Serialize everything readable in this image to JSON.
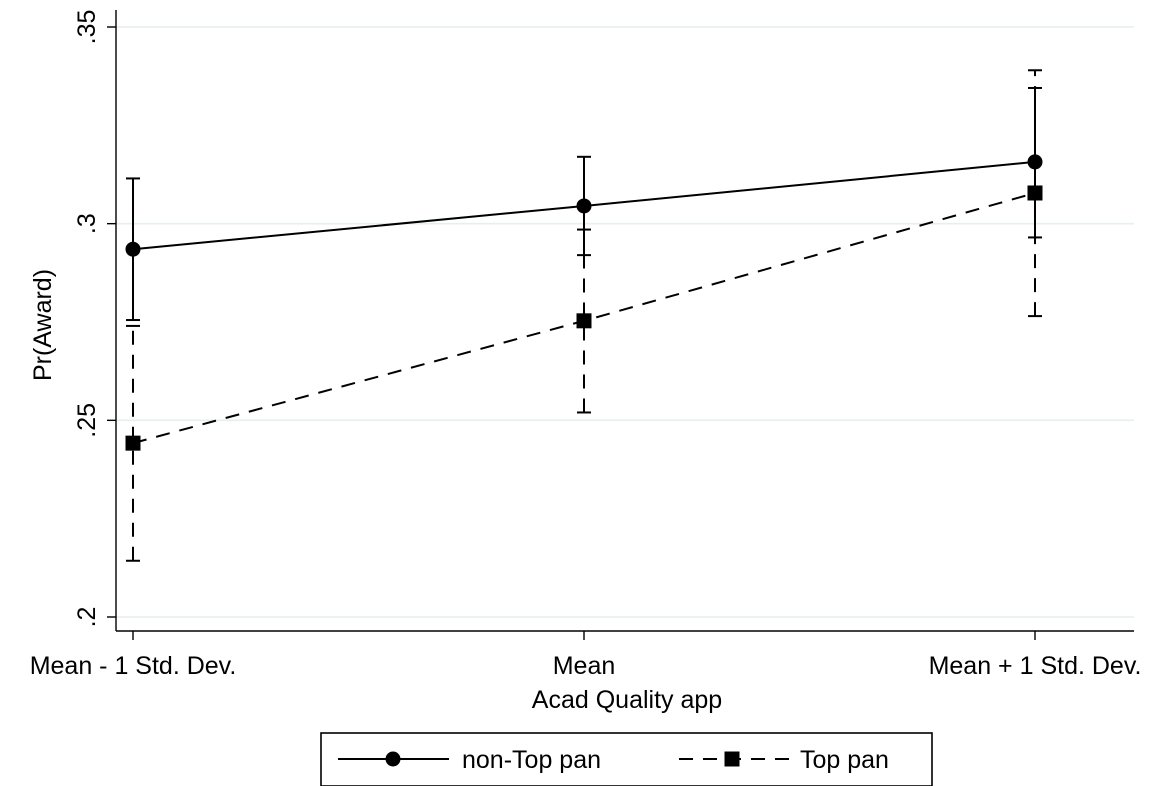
{
  "chart_data": {
    "type": "line",
    "title": "",
    "xlabel": "Acad Quality app",
    "ylabel": "Pr(Award)",
    "categories": [
      "Mean - 1 Std. Dev.",
      "Mean",
      "Mean + 1 Std. Dev."
    ],
    "ylim": [
      0.2,
      0.35
    ],
    "yticks": [
      {
        "value": 0.2,
        "label": ".2"
      },
      {
        "value": 0.25,
        "label": ".25"
      },
      {
        "value": 0.3,
        "label": ".3"
      },
      {
        "value": 0.35,
        "label": ".35"
      }
    ],
    "grid": true,
    "legend_position": "bottom",
    "series": [
      {
        "name": "non-Top pan",
        "marker": "circle",
        "line_style": "solid",
        "color": "#000000",
        "values": [
          0.2935,
          0.3045,
          0.3157
        ],
        "ci_low": [
          0.2755,
          0.292,
          0.2965
        ],
        "ci_high": [
          0.3115,
          0.317,
          0.3345
        ]
      },
      {
        "name": "Top pan",
        "marker": "square",
        "line_style": "dashed",
        "color": "#000000",
        "values": [
          0.2442,
          0.2753,
          0.3078
        ],
        "ci_low": [
          0.2143,
          0.252,
          0.2765
        ],
        "ci_high": [
          0.274,
          0.2985,
          0.339
        ]
      }
    ]
  }
}
